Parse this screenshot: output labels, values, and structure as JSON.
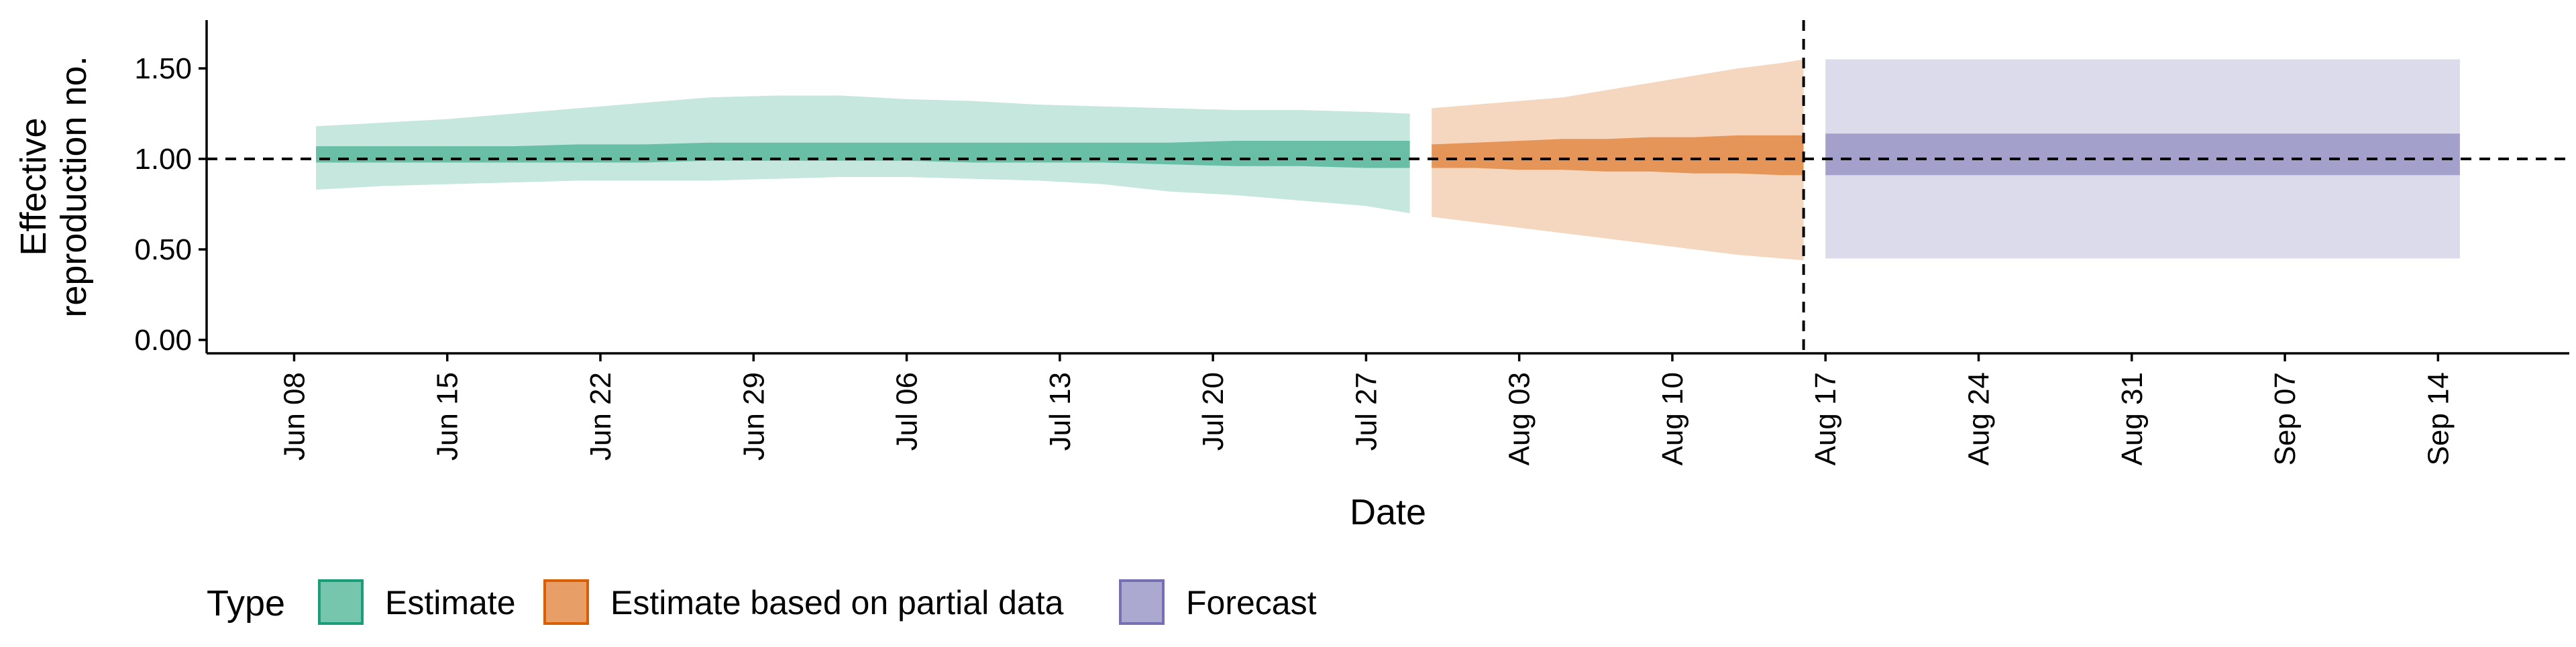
{
  "chart_data": {
    "type": "area",
    "title": "",
    "xlabel": "Date",
    "ylabel_lines": [
      "Effective",
      "reproduction no."
    ],
    "ylim": [
      0,
      1.6
    ],
    "yticks": [
      0,
      0.5,
      1,
      1.5
    ],
    "ytick_labels": [
      "0.00",
      "0.50",
      "1.00",
      "1.50"
    ],
    "xlim": [
      "2020-06-04",
      "2020-09-20"
    ],
    "xticks": [
      "2020-06-08",
      "2020-06-15",
      "2020-06-22",
      "2020-06-29",
      "2020-07-06",
      "2020-07-13",
      "2020-07-20",
      "2020-07-27",
      "2020-08-03",
      "2020-08-10",
      "2020-08-17",
      "2020-08-24",
      "2020-08-31",
      "2020-09-07",
      "2020-09-14"
    ],
    "xtick_labels": [
      "Jun 08",
      "Jun 15",
      "Jun 22",
      "Jun 29",
      "Jul 06",
      "Jul 13",
      "Jul 20",
      "Jul 27",
      "Aug 03",
      "Aug 10",
      "Aug 17",
      "Aug 24",
      "Aug 31",
      "Sep 07",
      "Sep 14"
    ],
    "reference_line_y": 1.0,
    "vertical_line_x": "2020-08-16",
    "grid": false,
    "legend_position": "bottom-left",
    "legend_title": "Type",
    "series": [
      {
        "name": "Estimate",
        "color": "#1b9e77",
        "x": [
          "2020-06-09",
          "2020-06-12",
          "2020-06-15",
          "2020-06-18",
          "2020-06-21",
          "2020-06-24",
          "2020-06-27",
          "2020-06-30",
          "2020-07-03",
          "2020-07-06",
          "2020-07-09",
          "2020-07-12",
          "2020-07-15",
          "2020-07-18",
          "2020-07-21",
          "2020-07-24",
          "2020-07-27",
          "2020-07-29"
        ],
        "outer_lower": [
          0.83,
          0.85,
          0.86,
          0.87,
          0.88,
          0.88,
          0.88,
          0.89,
          0.9,
          0.9,
          0.89,
          0.88,
          0.86,
          0.82,
          0.8,
          0.77,
          0.74,
          0.7
        ],
        "outer_upper": [
          1.18,
          1.2,
          1.22,
          1.25,
          1.28,
          1.31,
          1.34,
          1.35,
          1.35,
          1.33,
          1.32,
          1.3,
          1.29,
          1.28,
          1.27,
          1.27,
          1.26,
          1.25
        ],
        "inner_lower": [
          0.98,
          0.98,
          0.98,
          0.98,
          0.98,
          0.98,
          0.99,
          0.99,
          0.99,
          0.99,
          0.98,
          0.98,
          0.98,
          0.97,
          0.96,
          0.96,
          0.95,
          0.95
        ],
        "inner_upper": [
          1.07,
          1.07,
          1.07,
          1.07,
          1.08,
          1.08,
          1.09,
          1.09,
          1.09,
          1.09,
          1.09,
          1.09,
          1.09,
          1.09,
          1.1,
          1.1,
          1.1,
          1.1
        ]
      },
      {
        "name": "Estimate based on partial data",
        "color": "#d95f02",
        "x": [
          "2020-07-30",
          "2020-08-01",
          "2020-08-03",
          "2020-08-05",
          "2020-08-07",
          "2020-08-09",
          "2020-08-11",
          "2020-08-13",
          "2020-08-15",
          "2020-08-16"
        ],
        "outer_lower": [
          0.68,
          0.65,
          0.62,
          0.59,
          0.56,
          0.53,
          0.5,
          0.47,
          0.45,
          0.44
        ],
        "outer_upper": [
          1.28,
          1.3,
          1.32,
          1.34,
          1.38,
          1.42,
          1.46,
          1.5,
          1.53,
          1.55
        ],
        "inner_lower": [
          0.95,
          0.95,
          0.94,
          0.94,
          0.93,
          0.93,
          0.92,
          0.92,
          0.91,
          0.91
        ],
        "inner_upper": [
          1.08,
          1.09,
          1.1,
          1.11,
          1.11,
          1.12,
          1.12,
          1.13,
          1.13,
          1.13
        ]
      },
      {
        "name": "Forecast",
        "color": "#7570b3",
        "x": [
          "2020-08-17",
          "2020-09-15"
        ],
        "outer_lower": [
          0.45,
          0.45
        ],
        "outer_upper": [
          1.55,
          1.55
        ],
        "inner_lower": [
          0.91,
          0.91
        ],
        "inner_upper": [
          1.14,
          1.14
        ]
      }
    ]
  }
}
